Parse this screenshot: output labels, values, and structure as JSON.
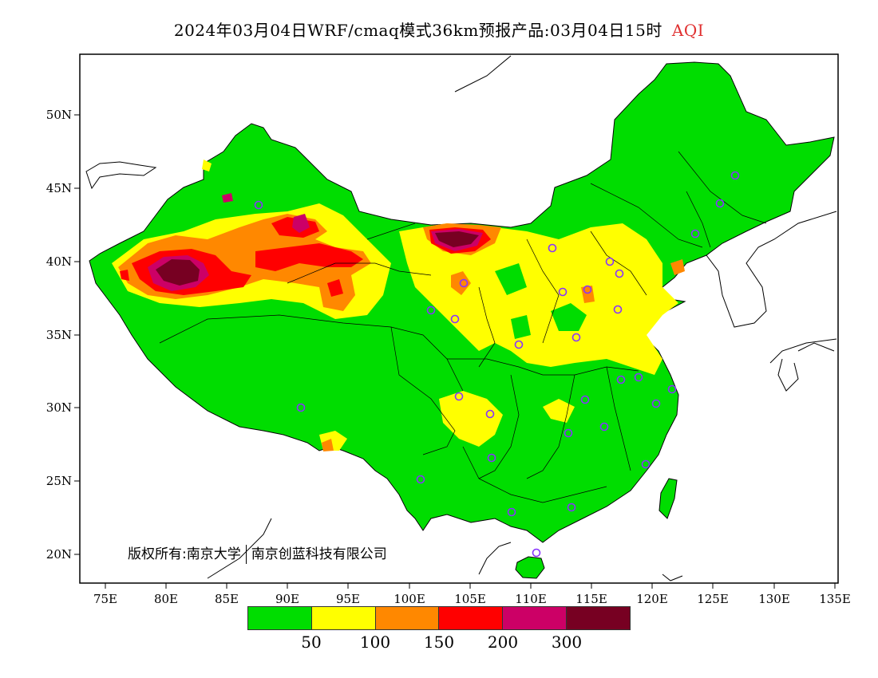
{
  "header": {
    "title": "2024年03月04日WRF/cmaq模式36km预报产品:03月04日15时",
    "variable": "AQI"
  },
  "map": {
    "lon_ticks": [
      "75E",
      "80E",
      "85E",
      "90E",
      "95E",
      "100E",
      "105E",
      "110E",
      "115E",
      "120E",
      "125E",
      "130E",
      "135E"
    ],
    "lat_ticks": [
      "50N",
      "45N",
      "40N",
      "35N",
      "30N",
      "25N",
      "20N"
    ],
    "lon_range": [
      73,
      135
    ],
    "lat_range": [
      18,
      54
    ],
    "land_color": "#00dd00",
    "station_marker_color": "#8833ff"
  },
  "copyright": {
    "left": "版权所有:南京大学",
    "right": "南京创蓝科技有限公司"
  },
  "legend": {
    "colors": [
      "#00dd00",
      "#ffff00",
      "#ff8800",
      "#ff0000",
      "#cc0066",
      "#770022"
    ],
    "labels": [
      "50",
      "100",
      "150",
      "200",
      "300"
    ]
  }
}
